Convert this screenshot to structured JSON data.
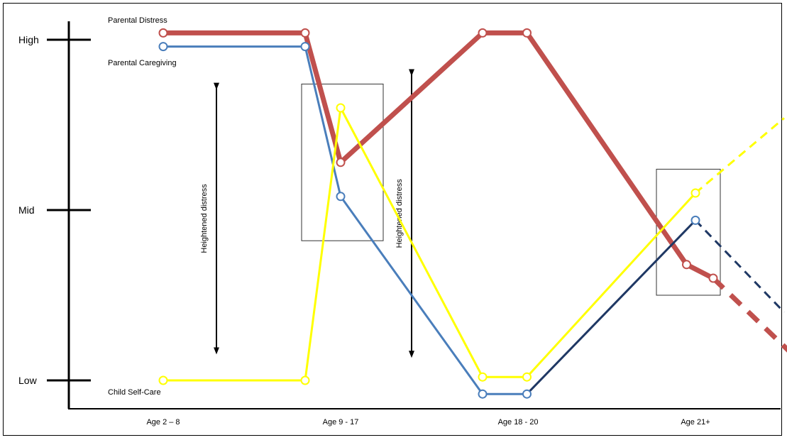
{
  "chart_data": {
    "type": "line",
    "title": "",
    "xlabel": "",
    "ylabel": "",
    "categories": [
      "Age 2 – 8",
      "Age 9 - 17",
      "Age 18 - 20",
      "Age 21+"
    ],
    "y_ticks": [
      "Low",
      "Mid",
      "High"
    ],
    "ylim": [
      0,
      100
    ],
    "series": [
      {
        "name": "Parental Distress",
        "color": "#c0504d",
        "style": "thick",
        "points": [
          {
            "x": 1.0,
            "y": 102
          },
          {
            "x": 1.8,
            "y": 102
          },
          {
            "x": 2.0,
            "y": 64
          },
          {
            "x": 2.8,
            "y": 102
          },
          {
            "x": 3.05,
            "y": 102
          },
          {
            "x": 3.95,
            "y": 34
          },
          {
            "x": 4.1,
            "y": 30
          }
        ],
        "projection": [
          {
            "x": 4.1,
            "y": 30
          },
          {
            "x": 4.6,
            "y": 5
          }
        ]
      },
      {
        "name": "Parental Caregiving",
        "color": "#4a7ebb",
        "style": "normal",
        "points": [
          {
            "x": 1.0,
            "y": 98
          },
          {
            "x": 1.8,
            "y": 98
          },
          {
            "x": 2.0,
            "y": 54
          },
          {
            "x": 2.8,
            "y": -4
          },
          {
            "x": 3.05,
            "y": -4
          }
        ],
        "segment_2": {
          "color": "#1f3864",
          "points": [
            {
              "x": 3.05,
              "y": -4
            },
            {
              "x": 4.0,
              "y": 47
            }
          ]
        },
        "projection": [
          {
            "x": 4.0,
            "y": 47
          },
          {
            "x": 4.5,
            "y": 20
          }
        ]
      },
      {
        "name": "Child Self-Care",
        "color": "#ffff00",
        "style": "normal",
        "points": [
          {
            "x": 1.0,
            "y": 0
          },
          {
            "x": 1.8,
            "y": 0
          },
          {
            "x": 2.0,
            "y": 80
          },
          {
            "x": 2.8,
            "y": 1
          },
          {
            "x": 3.05,
            "y": 1
          },
          {
            "x": 4.0,
            "y": 55
          }
        ],
        "projection": [
          {
            "x": 4.0,
            "y": 55
          },
          {
            "x": 4.5,
            "y": 77
          }
        ]
      }
    ],
    "annotations": [
      {
        "text": "Heightened distress",
        "x": 1.3,
        "y_from": 88,
        "y_to": 7
      },
      {
        "text": "Heightened distress",
        "x": 2.4,
        "y_from": 92,
        "y_to": 6
      }
    ],
    "boxes": [
      {
        "x_from": 1.78,
        "x_to": 2.24,
        "y_from": 87,
        "y_to": 41
      },
      {
        "x_from": 3.78,
        "x_to": 4.14,
        "y_from": 62,
        "y_to": 25
      }
    ],
    "grid": false,
    "legend": "none"
  }
}
